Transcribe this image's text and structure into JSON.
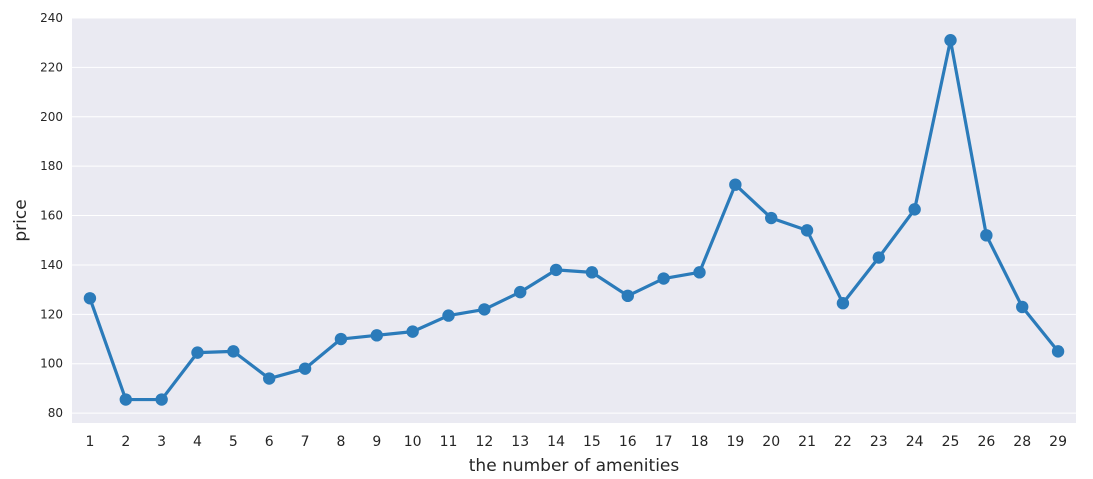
{
  "chart_data": {
    "type": "line",
    "xlabel": "the number of amenities",
    "ylabel": "price",
    "categories": [
      "1",
      "2",
      "3",
      "4",
      "5",
      "6",
      "7",
      "8",
      "9",
      "10",
      "11",
      "12",
      "13",
      "14",
      "15",
      "16",
      "17",
      "18",
      "19",
      "20",
      "21",
      "22",
      "23",
      "24",
      "25",
      "26",
      "28",
      "29"
    ],
    "values": [
      126.5,
      85.5,
      85.5,
      104.5,
      105,
      94,
      98,
      110,
      111.5,
      113,
      119.5,
      122,
      129,
      138,
      137,
      127.5,
      134.5,
      137,
      172.5,
      159,
      154,
      124.5,
      143,
      162.5,
      231,
      152,
      123,
      105
    ],
    "ylim": [
      76,
      240
    ],
    "yticks": [
      80,
      100,
      120,
      140,
      160,
      180,
      200,
      220,
      240
    ],
    "grid": true,
    "line_color": "#2b7bba",
    "background_color": "#eaeaf2",
    "grid_color": "#ffffff"
  }
}
